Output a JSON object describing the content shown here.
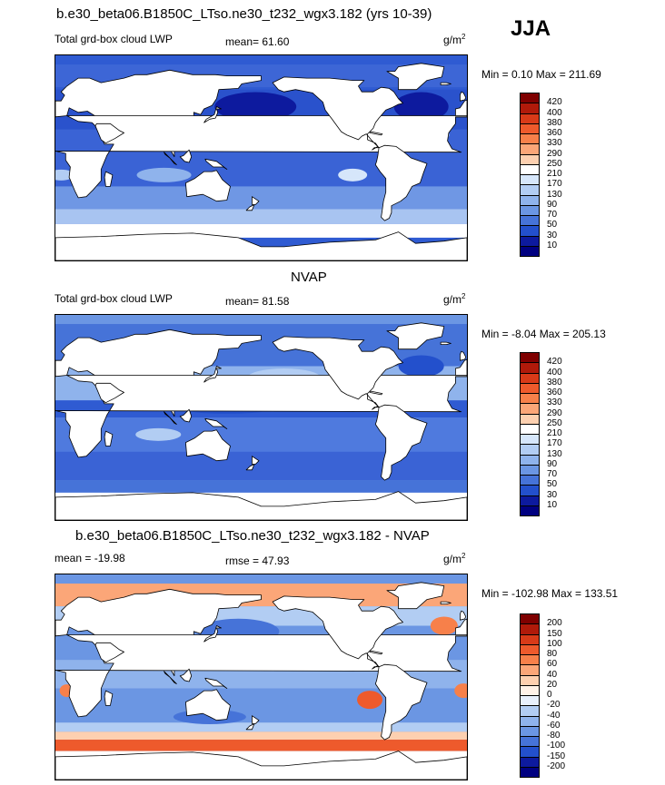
{
  "header": {
    "title_top": "b.e30_beta06.B1850C_LTso.ne30_t232_wgx3.182 (yrs 10-39)",
    "season": "JJA",
    "title_mid": "NVAP",
    "title_bottom": "b.e30_beta06.B1850C_LTso.ne30_t232_wgx3.182 - NVAP"
  },
  "panels": [
    {
      "left_label": "Total grd-box cloud LWP",
      "center_label": "mean=  61.60",
      "units_base": "g/m",
      "units_exp": "2",
      "minmax": "Min =   0.10 Max = 211.69",
      "levels": [
        "420",
        "400",
        "380",
        "360",
        "330",
        "290",
        "250",
        "210",
        "170",
        "130",
        "90",
        "70",
        "50",
        "30",
        "10"
      ],
      "colors": [
        "#7f0000",
        "#b01a0a",
        "#d83a18",
        "#ee5a2c",
        "#f7804a",
        "#fba678",
        "#fdd0b0",
        "#ffffff",
        "#d6e6fa",
        "#b2cdf3",
        "#8fb3ec",
        "#6b96e3",
        "#4673d8",
        "#2350cc",
        "#0d1a9e",
        "#000080"
      ]
    },
    {
      "left_label": "Total grd-box cloud LWP",
      "center_label": "mean=  81.58",
      "units_base": "g/m",
      "units_exp": "2",
      "minmax": "Min =  -8.04 Max = 205.13",
      "levels": [
        "420",
        "400",
        "380",
        "360",
        "330",
        "290",
        "250",
        "210",
        "170",
        "130",
        "90",
        "70",
        "50",
        "30",
        "10"
      ],
      "colors": [
        "#7f0000",
        "#b01a0a",
        "#d83a18",
        "#ee5a2c",
        "#f7804a",
        "#fba678",
        "#fdd0b0",
        "#ffffff",
        "#d6e6fa",
        "#b2cdf3",
        "#8fb3ec",
        "#6b96e3",
        "#4673d8",
        "#2350cc",
        "#0d1a9e",
        "#000080"
      ]
    },
    {
      "left_label": "mean = -19.98",
      "center_label": "rmse =  47.93",
      "units_base": "g/m",
      "units_exp": "2",
      "minmax": "Min = -102.98 Max = 133.51",
      "levels": [
        "200",
        "150",
        "100",
        "80",
        "60",
        "40",
        "20",
        "0",
        "-20",
        "-40",
        "-60",
        "-80",
        "-100",
        "-150",
        "-200"
      ],
      "colors": [
        "#7f0000",
        "#b01a0a",
        "#d83a18",
        "#ee5a2c",
        "#f7804a",
        "#fba678",
        "#fdd0b0",
        "#fff2e8",
        "#e8f0fc",
        "#b2cdf3",
        "#8fb3ec",
        "#6b96e3",
        "#4673d8",
        "#2350cc",
        "#0d1a9e",
        "#000080"
      ]
    }
  ]
}
